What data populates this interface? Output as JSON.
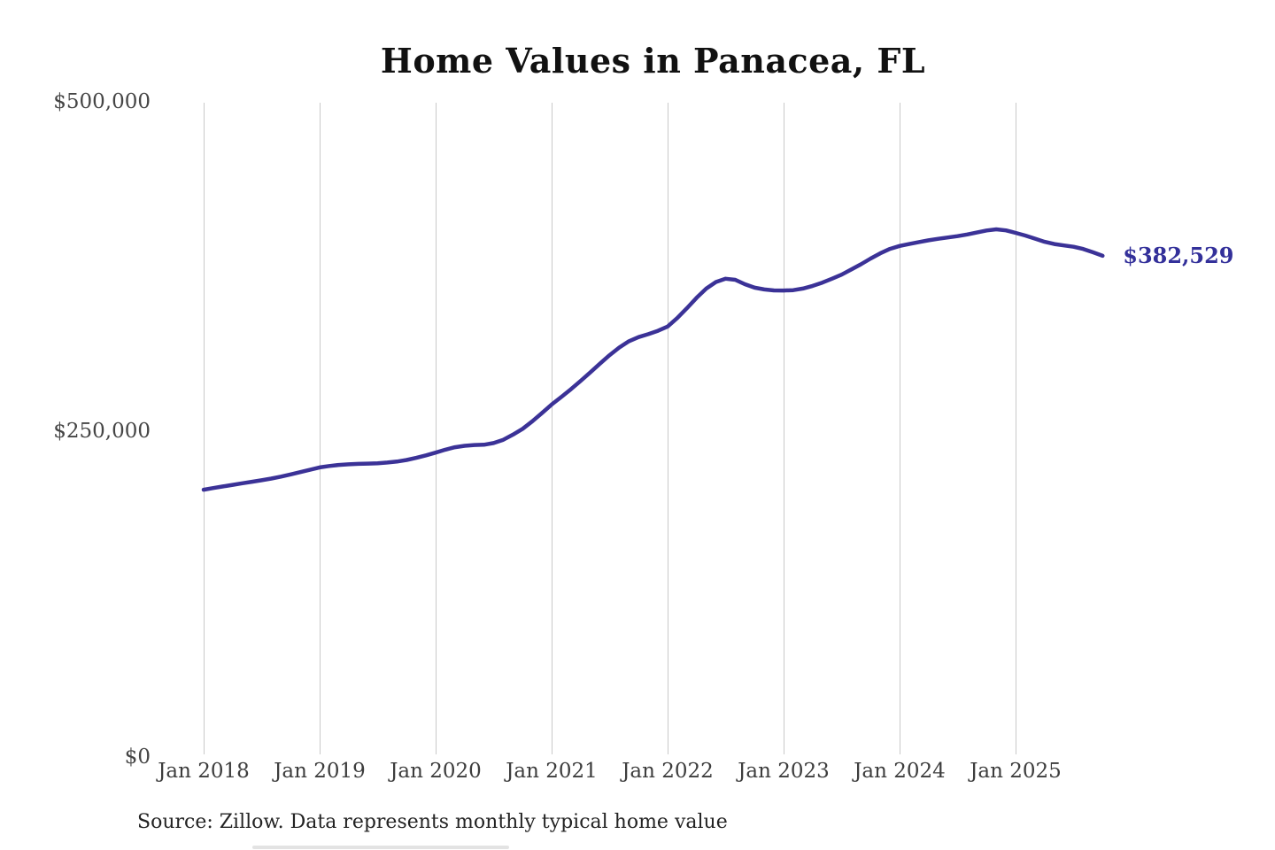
{
  "chart": {
    "title": "Home Values in Panacea, FL",
    "end_value_label": "$382,529",
    "source_note": "Source: Zillow. Data represents monthly typical home value",
    "y_tick_labels": [
      "$0",
      "$250,000",
      "$500,000"
    ],
    "x_tick_labels": [
      "Jan 2018",
      "Jan 2019",
      "Jan 2020",
      "Jan 2021",
      "Jan 2022",
      "Jan 2023",
      "Jan 2024",
      "Jan 2025"
    ],
    "colors": {
      "line": "#3b3297",
      "end_label": "#33309a",
      "gridline": "#c9c9c9",
      "title_text": "#111111",
      "axis_text": "#454545"
    }
  },
  "chart_data": {
    "type": "line",
    "title": "Home Values in Panacea, FL",
    "x_interval": "monthly",
    "x_start": "Jan 2018",
    "x_end": "Oct 2025",
    "x_tick_labels": [
      "Jan 2018",
      "Jan 2019",
      "Jan 2020",
      "Jan 2021",
      "Jan 2022",
      "Jan 2023",
      "Jan 2024",
      "Jan 2025"
    ],
    "ylabel": "",
    "xlabel": "",
    "ylim": [
      0,
      500000
    ],
    "y_tick_values": [
      0,
      250000,
      500000
    ],
    "y_tick_labels": [
      "$0",
      "$250,000",
      "$500,000"
    ],
    "grid": "vertical-only",
    "legend": "none",
    "annotation": {
      "text": "$382,529",
      "position": "line-end"
    },
    "last_value": 382529,
    "source": "Source: Zillow. Data represents monthly typical home value",
    "series": [
      {
        "name": "Typical home value (USD)",
        "color": "#3b3297",
        "values": [
          204000,
          205300,
          206500,
          207700,
          208900,
          210100,
          211200,
          212500,
          214000,
          215700,
          217400,
          219200,
          221000,
          222100,
          222900,
          223400,
          223700,
          223900,
          224200,
          224700,
          225500,
          226700,
          228300,
          230200,
          232300,
          234500,
          236400,
          237500,
          238100,
          238300,
          239600,
          242100,
          246000,
          250500,
          256200,
          262500,
          269000,
          274700,
          280700,
          287000,
          293500,
          300200,
          306700,
          312500,
          317300,
          320500,
          322700,
          325300,
          328500,
          335000,
          342500,
          350500,
          357500,
          362500,
          365000,
          364200,
          360800,
          358200,
          356800,
          356100,
          356000,
          356300,
          357500,
          359500,
          362000,
          365000,
          368100,
          372000,
          376000,
          380400,
          384400,
          387800,
          390000,
          391500,
          393000,
          394300,
          395500,
          396500,
          397500,
          398800,
          400300,
          401800,
          402700,
          401900,
          400000,
          398000,
          395600,
          393200,
          391500,
          390400,
          389400,
          387700,
          385200,
          382529
        ]
      }
    ]
  }
}
